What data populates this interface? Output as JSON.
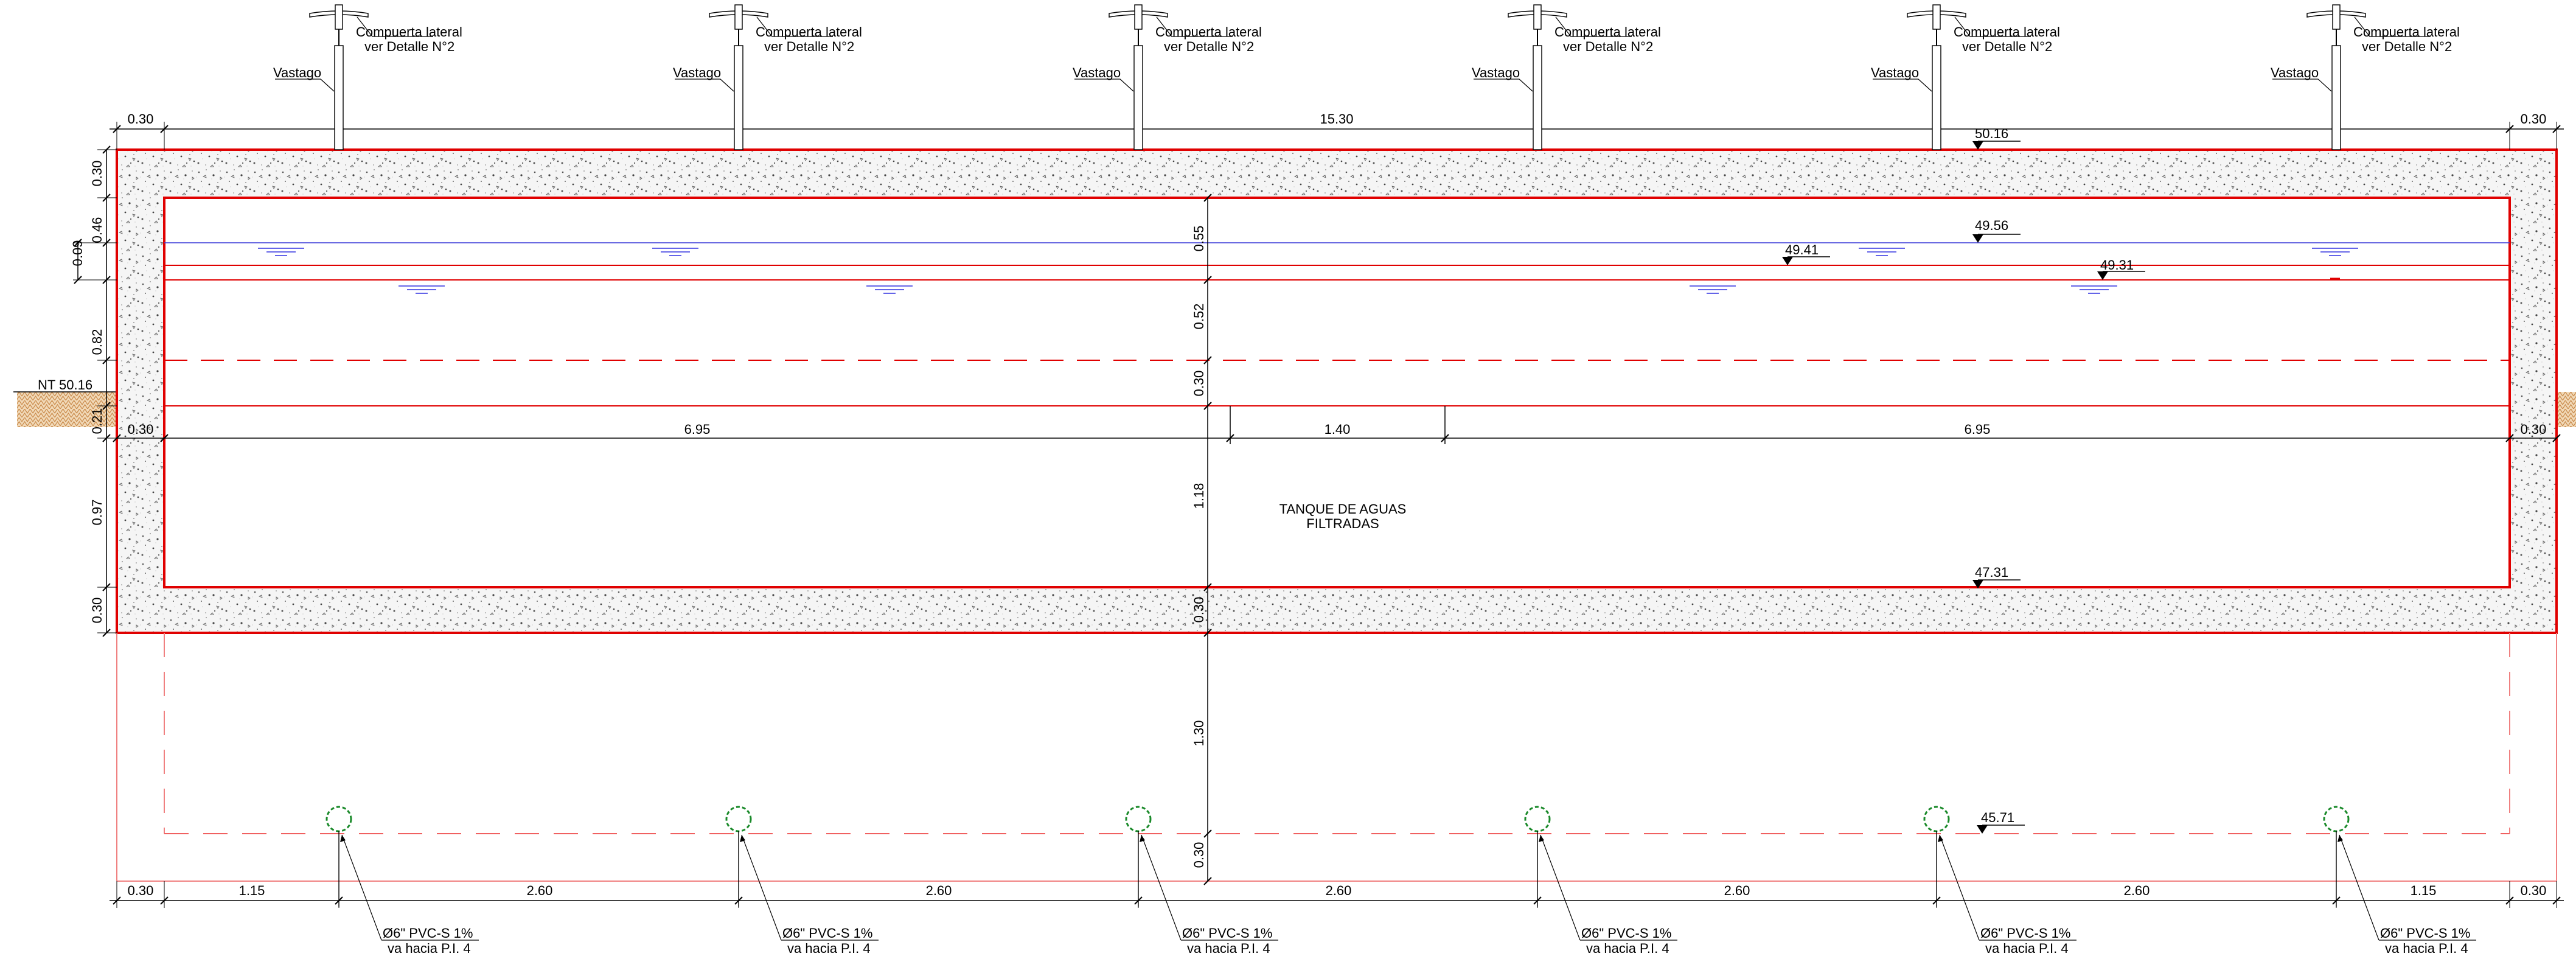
{
  "colors": {
    "concrete_outline": "#e00000",
    "dimension": "#000000",
    "water_line": "#3a3ad8",
    "water_symbol": "#3030e0",
    "pipe": "#1a8a2a",
    "soil": "#c98a4a",
    "concrete_fill": "#f2f2f2"
  },
  "gates": {
    "label_line1": "Compuerta lateral",
    "label_line2": "ver Detalle N°2",
    "stem_label": "Vastago"
  },
  "pipes": {
    "label_line1": "Ø6\" PVC-S 1%",
    "label_line2": "va hacia P.I. 4"
  },
  "tank_label": {
    "line1": "TANQUE DE AGUAS",
    "line2": "FILTRADAS"
  },
  "ground_label": "NT 50.16",
  "levels": {
    "top": "50.16",
    "water_high": "49.56",
    "weir_left": "49.41",
    "weir_right": "49.31",
    "tank_bottom": "47.31",
    "pipe": "45.71"
  },
  "dims_horizontal": {
    "top_left_wall": "0.30",
    "top_total": "15.30",
    "top_right_wall": "0.30",
    "mid_left_wall": "0.30",
    "mid_left": "6.95",
    "mid_center": "1.40",
    "mid_right": "6.95",
    "mid_right_wall": "0.30",
    "bot_left_wall": "0.30",
    "bot_first": "1.15",
    "bot_spacing": "2.60",
    "bot_last": "1.15",
    "bot_right_wall": "0.30"
  },
  "dims_vertical_left": {
    "top_slab": "0.30",
    "upper": "0.46",
    "small": "0.09",
    "middle": "0.82",
    "lower_small": "0.21",
    "lower": "0.97",
    "bottom_slab": "0.30"
  },
  "dims_vertical_center": {
    "a": "0.55",
    "b": "0.52",
    "c": "0.30",
    "d": "1.18",
    "e": "0.30",
    "f": "1.30",
    "g": "0.30"
  }
}
